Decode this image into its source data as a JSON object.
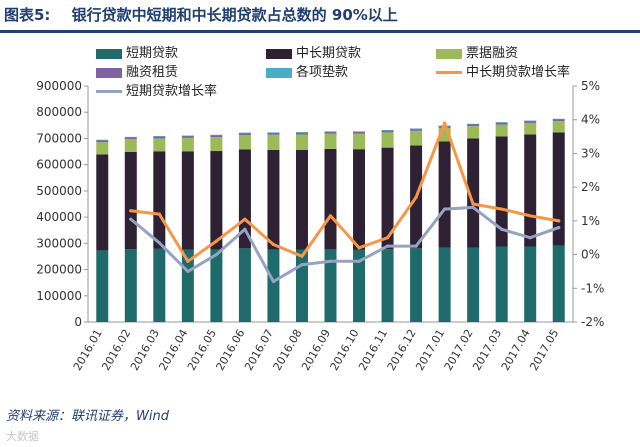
{
  "header": {
    "figure_label": "图表5:",
    "title": "银行贷款中短期和中长期贷款占总数的 90%以上"
  },
  "footer": {
    "source": "资料来源：联讯证券，Wind",
    "watermark": "大数据"
  },
  "colors": {
    "short_term": "#1f6b6b",
    "mid_long": "#2e2133",
    "bill": "#9bbb59",
    "lease": "#8064a2",
    "advances": "#4bacc6",
    "mid_long_growth": "#f79646",
    "short_growth": "#94a3c4",
    "title": "#1f3f73"
  },
  "chart_data": {
    "type": "bar",
    "stacked": true,
    "categories": [
      "2016.01",
      "2016.02",
      "2016.03",
      "2016.04",
      "2016.05",
      "2016.06",
      "2016.07",
      "2016.08",
      "2016.09",
      "2016.10",
      "2016.11",
      "2016.12",
      "2017.01",
      "2017.02",
      "2017.03",
      "2017.04",
      "2017.05"
    ],
    "ylim": [
      0,
      900000
    ],
    "yticks": [
      "0",
      "100000",
      "200000",
      "300000",
      "400000",
      "500000",
      "600000",
      "700000",
      "800000",
      "900000"
    ],
    "y2lim": [
      -2,
      5
    ],
    "y2ticks": [
      "-2%",
      "-1%",
      "0%",
      "1%",
      "2%",
      "3%",
      "4%",
      "5%"
    ],
    "series": [
      {
        "name": "短期贷款",
        "kind": "bar",
        "axis": "left",
        "values": [
          273000,
          278000,
          279000,
          276000,
          276000,
          281000,
          276000,
          275000,
          277000,
          275000,
          278000,
          281000,
          283000,
          284000,
          288000,
          288000,
          291000
        ]
      },
      {
        "name": "中长期贷款",
        "kind": "bar",
        "axis": "left",
        "values": [
          366000,
          371000,
          372000,
          375000,
          376000,
          377000,
          380000,
          381000,
          383000,
          384000,
          387000,
          392000,
          406000,
          416000,
          420000,
          427000,
          432000
        ]
      },
      {
        "name": "票据融资",
        "kind": "bar",
        "axis": "left",
        "values": [
          47000,
          48000,
          49000,
          51000,
          53000,
          55000,
          58000,
          59000,
          58000,
          59000,
          58000,
          56000,
          51000,
          47000,
          45000,
          44000,
          43000
        ]
      },
      {
        "name": "融资租赁",
        "kind": "bar",
        "axis": "left",
        "values": [
          8000,
          8000,
          8000,
          8000,
          8000,
          8000,
          8000,
          8000,
          8000,
          8000,
          8000,
          8000,
          8000,
          8000,
          8000,
          8000,
          8000
        ]
      },
      {
        "name": "各项垫款",
        "kind": "bar",
        "axis": "left",
        "values": [
          1000,
          1000,
          1000,
          1000,
          1000,
          1000,
          1000,
          1000,
          1000,
          1000,
          1000,
          1000,
          1000,
          1000,
          1000,
          1000,
          1000
        ]
      },
      {
        "name": "中长期贷款增长率",
        "kind": "line",
        "axis": "right",
        "values": [
          null,
          1.3,
          1.2,
          -0.2,
          0.4,
          1.05,
          0.3,
          -0.05,
          1.15,
          0.2,
          0.5,
          1.7,
          3.9,
          1.5,
          1.35,
          1.15,
          1.0
        ]
      },
      {
        "name": "短期贷款增长率",
        "kind": "line",
        "axis": "right",
        "values": [
          null,
          1.05,
          0.35,
          -0.5,
          0.0,
          0.75,
          -0.8,
          -0.3,
          -0.2,
          -0.2,
          0.25,
          0.25,
          1.35,
          1.4,
          0.75,
          0.5,
          0.8
        ]
      }
    ]
  }
}
